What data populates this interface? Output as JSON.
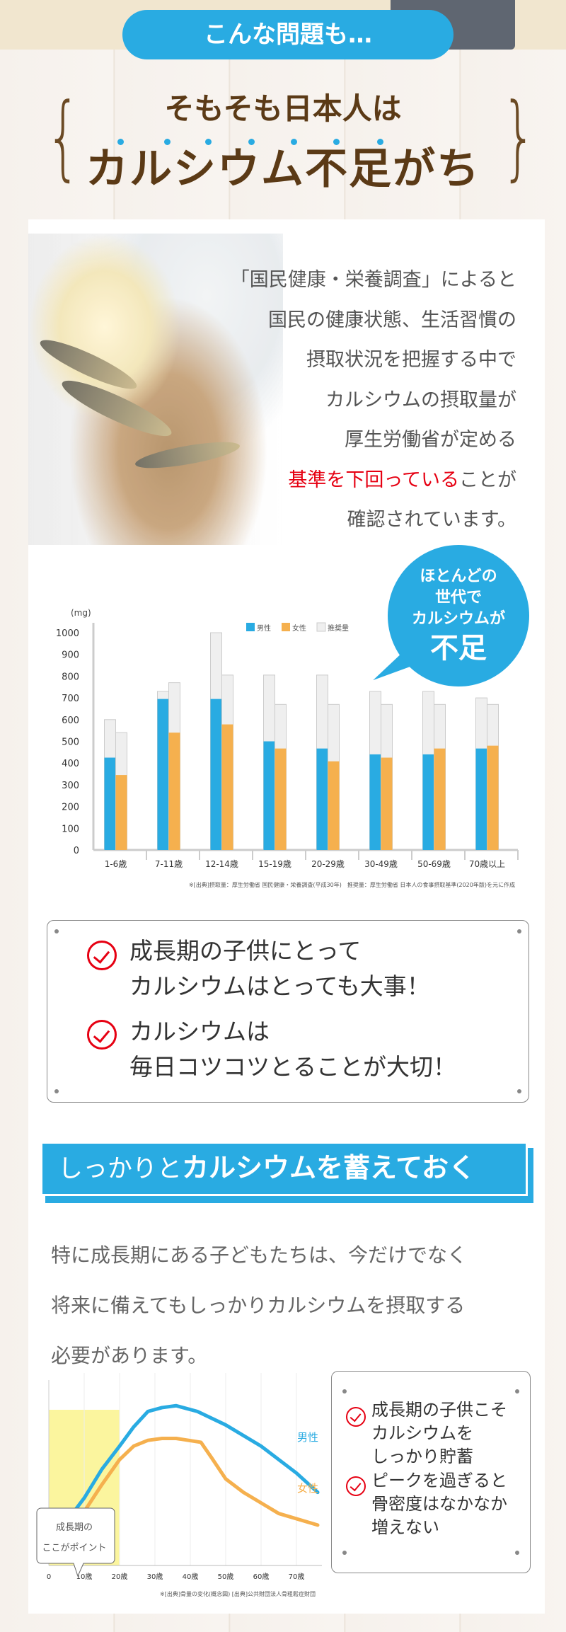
{
  "header": {
    "pill": "こんな問題も…",
    "title_line1": "そもそも日本人は",
    "title_line2": "カルシウム不足がち"
  },
  "intro": {
    "lines": [
      "「国民健康・栄養調査」によると",
      "国民の健康状態、生活習慣の",
      "摂取状況を把握する中で",
      "カルシウムの摂取量が",
      "厚生労働省が定める"
    ],
    "red": "基準を下回っている",
    "red_after": "ことが",
    "last": "確認されています。"
  },
  "bubble": {
    "l1": "ほとんどの",
    "l2": "世代で",
    "l3": "カルシウムが",
    "big": "不足"
  },
  "colors": {
    "male": "#29abe2",
    "female": "#f5b04e",
    "recommended": "#efefef",
    "accent": "#29abe2",
    "check": "#e60012"
  },
  "chart_data": [
    {
      "type": "bar",
      "title": "",
      "ylabel": "(mg)",
      "ylim": [
        0,
        1000
      ],
      "yticks": [
        0,
        100,
        200,
        300,
        400,
        500,
        600,
        700,
        800,
        900,
        1000
      ],
      "categories": [
        "1-6歳",
        "7-11歳",
        "12-14歳",
        "15-19歳",
        "20-29歳",
        "30-49歳",
        "50-69歳",
        "70歳以上"
      ],
      "legend": [
        "男性",
        "女性",
        "推奨量"
      ],
      "legend_position": "top",
      "series": [
        {
          "name": "男性",
          "values": [
            425,
            695,
            695,
            500,
            467,
            440,
            440,
            467
          ],
          "recommended": [
            600,
            730,
            1000,
            805,
            805,
            730,
            730,
            700
          ]
        },
        {
          "name": "女性",
          "values": [
            345,
            540,
            578,
            467,
            408,
            425,
            467,
            480
          ],
          "recommended": [
            540,
            770,
            805,
            670,
            670,
            670,
            670,
            670
          ]
        }
      ],
      "footnote": "※[出典]摂取量：厚生労働省 国民健康・栄養調査(平成30年)　推奨量：厚生労働省 日本人の食事摂取基準(2020年版)を元に作成"
    },
    {
      "type": "line",
      "title": "",
      "xlabel": "",
      "ylabel": "",
      "xticks": [
        "0",
        "10歳",
        "20歳",
        "30歳",
        "40歳",
        "50歳",
        "60歳",
        "70歳"
      ],
      "highlight_range": [
        0,
        20
      ],
      "series": [
        {
          "name": "男性",
          "x": [
            3,
            10,
            15,
            20,
            24,
            28,
            32,
            36,
            42,
            50,
            60,
            70,
            76
          ],
          "y": [
            18,
            35,
            50,
            62,
            72,
            80,
            82,
            83,
            80,
            73,
            62,
            48,
            38
          ]
        },
        {
          "name": "女性",
          "x": [
            3,
            10,
            15,
            20,
            24,
            28,
            32,
            36,
            43,
            46,
            50,
            55,
            65,
            76
          ],
          "y": [
            12,
            28,
            42,
            55,
            62,
            65,
            66,
            66,
            64,
            56,
            45,
            38,
            27,
            21
          ]
        }
      ],
      "callout": [
        "成長期の",
        "ここがポイント"
      ],
      "footnote": "※[出典]骨量の変化(概念図) [出典]公共財団法人骨粗鬆症財団"
    }
  ],
  "checks": {
    "item1": [
      "成長期の子供にとって",
      "カルシウムはとっても大事！"
    ],
    "item2": [
      "カルシウムは",
      "毎日コツコツとることが大切！"
    ]
  },
  "banner": {
    "pre": "しっかりと",
    "bold": "カルシウムを蓄えておく"
  },
  "para": [
    "特に成長期にある子どもたちは、今だけでなく",
    "将来に備えてもしっかりカルシウムを摂取する",
    "必要があります。"
  ],
  "side": {
    "item1": [
      "成長期の子供こそ",
      "カルシウムを",
      "しっかり貯蓄"
    ],
    "item2": [
      "ピークを過ぎると",
      "骨密度はなかなか",
      "増えない"
    ]
  }
}
